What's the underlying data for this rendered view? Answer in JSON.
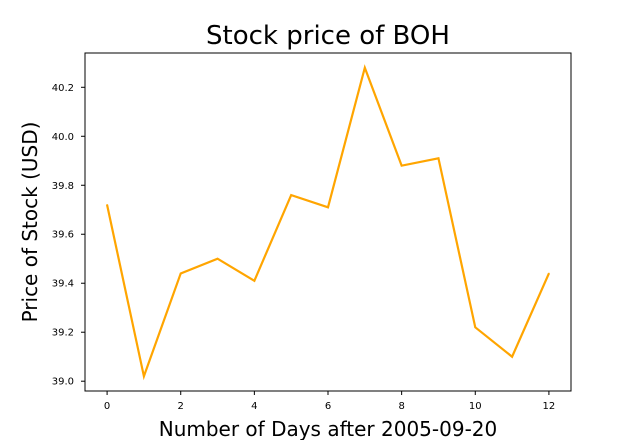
{
  "chart_data": {
    "type": "line",
    "title": "Stock price of BOH",
    "xlabel": "Number of Days after 2005-09-20",
    "ylabel": "Price of Stock (USD)",
    "x": [
      0,
      1,
      2,
      3,
      4,
      5,
      6,
      7,
      8,
      9,
      10,
      11,
      12
    ],
    "series": [
      {
        "values": [
          39.72,
          39.02,
          39.44,
          39.5,
          39.41,
          39.76,
          39.71,
          40.28,
          39.88,
          39.91,
          39.22,
          39.1,
          39.44
        ],
        "color": "#FFA500"
      }
    ],
    "xlim": [
      -0.6,
      12.6
    ],
    "ylim": [
      38.96,
      40.34
    ],
    "xticks": [
      0,
      2,
      4,
      6,
      8,
      10,
      12
    ],
    "yticks": [
      39.0,
      39.2,
      39.4,
      39.6,
      39.8,
      40.0,
      40.2
    ],
    "xtick_labels": [
      "0",
      "2",
      "4",
      "6",
      "8",
      "10",
      "12"
    ],
    "ytick_labels": [
      "39.0",
      "39.2",
      "39.4",
      "39.6",
      "39.8",
      "40.0",
      "40.2"
    ],
    "grid": false,
    "legend": "none"
  }
}
